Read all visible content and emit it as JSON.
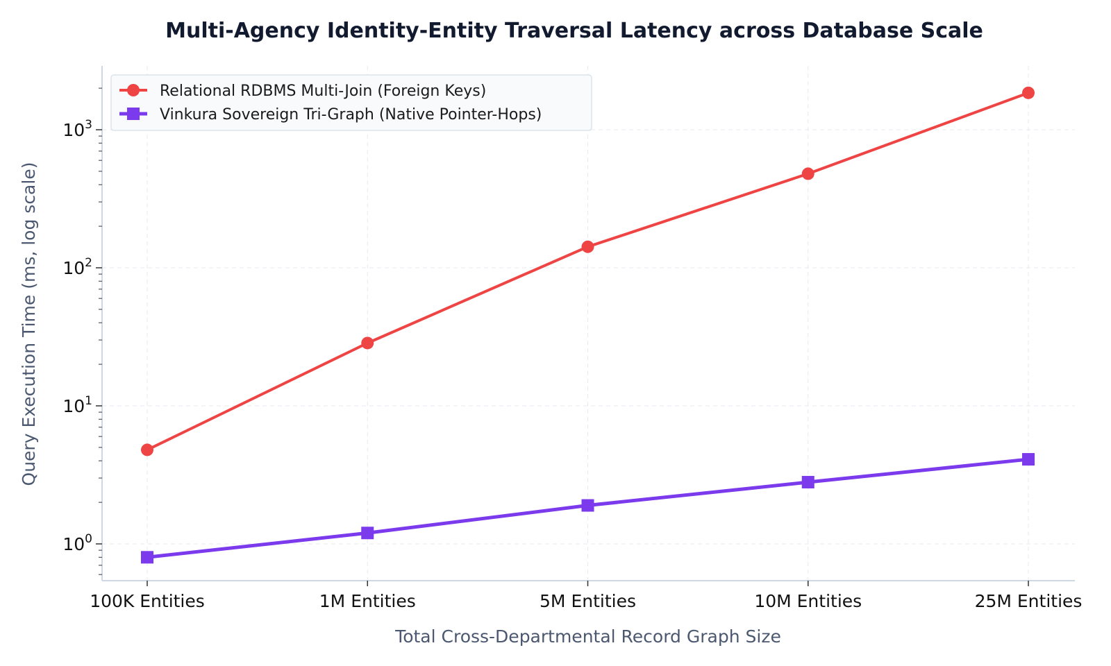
{
  "chart_data": {
    "type": "line",
    "title": "Multi-Agency Identity-Entity Traversal Latency across Database Scale",
    "xlabel": "Total Cross-Departmental Record Graph Size",
    "ylabel": "Query Execution Time (ms, log scale)",
    "yscale": "log",
    "ylim": [
      0.55,
      2800
    ],
    "grid": true,
    "legend_position": "top-left",
    "categories": [
      "100K Entities",
      "1M Entities",
      "5M Entities",
      "10M Entities",
      "25M Entities"
    ],
    "y_ticks": [
      {
        "base": "10",
        "exp": "0",
        "value": 1
      },
      {
        "base": "10",
        "exp": "1",
        "value": 10
      },
      {
        "base": "10",
        "exp": "2",
        "value": 100
      },
      {
        "base": "10",
        "exp": "3",
        "value": 1000
      }
    ],
    "series": [
      {
        "name": "Relational RDBMS Multi-Join (Foreign Keys)",
        "values": [
          4.8,
          28.5,
          142,
          480,
          1850
        ],
        "color": "#ef4444",
        "marker": "circle"
      },
      {
        "name": "Vinkura Sovereign Tri-Graph (Native Pointer-Hops)",
        "values": [
          0.8,
          1.2,
          1.9,
          2.8,
          4.1
        ],
        "color": "#7c3aed",
        "marker": "square"
      }
    ]
  }
}
